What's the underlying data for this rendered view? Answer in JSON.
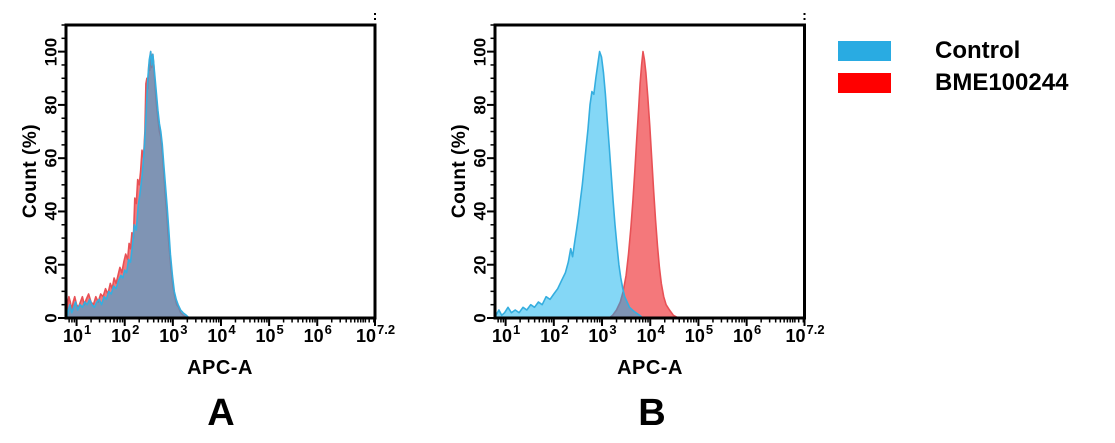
{
  "colors": {
    "control_fill": "rgba(10,176,238,0.5)",
    "control_stroke": "#35AEDF",
    "treatment_fill": "#F4787B",
    "treatment_stroke": "#E85156",
    "legend_control": "#29ABE2",
    "legend_treatment": "#FF0000",
    "axis": "#000000"
  },
  "legend": {
    "items": [
      {
        "label": "Control",
        "role": "control",
        "color": "#29ABE2"
      },
      {
        "label": "BME100244",
        "role": "treatment",
        "color": "#FF0000"
      }
    ]
  },
  "axes": {
    "x": {
      "label": "APC-A",
      "scale": "log10",
      "tick_base": "10",
      "range_log": [
        0.78,
        7.2
      ],
      "majors": [
        {
          "exp": "1",
          "log": 1
        },
        {
          "exp": "2",
          "log": 2
        },
        {
          "exp": "3",
          "log": 3
        },
        {
          "exp": "4",
          "log": 4
        },
        {
          "exp": "5",
          "log": 5
        },
        {
          "exp": "6",
          "log": 6
        },
        {
          "exp": "7.2",
          "log": 7.2
        }
      ],
      "minors_log": [
        0.845,
        0.903,
        0.954,
        1.301,
        1.477,
        1.602,
        1.699,
        1.778,
        1.845,
        1.903,
        1.954,
        2.301,
        2.477,
        2.602,
        2.699,
        2.778,
        2.845,
        2.903,
        2.954,
        3.301,
        3.477,
        3.602,
        3.699,
        3.778,
        3.845,
        3.903,
        3.954,
        4.301,
        4.477,
        4.602,
        4.699,
        4.778,
        4.845,
        4.903,
        4.954,
        5.301,
        5.477,
        5.602,
        5.699,
        5.778,
        5.845,
        5.903,
        5.954,
        6.301,
        6.477,
        6.602,
        6.699,
        6.778,
        6.845,
        6.903,
        6.954,
        7.0,
        7.079,
        7.176
      ]
    },
    "y": {
      "label": "Count (%)",
      "range": [
        0,
        110
      ],
      "majors": [
        0,
        20,
        40,
        60,
        80,
        100
      ],
      "minors": [
        5,
        10,
        15,
        25,
        30,
        35,
        45,
        50,
        55,
        65,
        70,
        75,
        85,
        90,
        95,
        105,
        110
      ],
      "grid": false
    }
  },
  "chart_data": [
    {
      "panel_label": "A",
      "type": "area",
      "xlabel": "APC-A",
      "ylabel": "Count (%)",
      "xscale": "log10",
      "xlim_log": [
        0.78,
        7.2
      ],
      "ylim": [
        0,
        110
      ],
      "legend_position": "outside-right",
      "series": [
        {
          "name": "BME100244",
          "role": "treatment",
          "points": [
            [
              0.8,
              0
            ],
            [
              0.81,
              5
            ],
            [
              0.84,
              8
            ],
            [
              0.87,
              6
            ],
            [
              0.9,
              3
            ],
            [
              0.93,
              6
            ],
            [
              0.96,
              8
            ],
            [
              1.0,
              5
            ],
            [
              1.04,
              4
            ],
            [
              1.08,
              6
            ],
            [
              1.12,
              8
            ],
            [
              1.16,
              5
            ],
            [
              1.2,
              7
            ],
            [
              1.25,
              9
            ],
            [
              1.3,
              6
            ],
            [
              1.35,
              5
            ],
            [
              1.4,
              8
            ],
            [
              1.45,
              6
            ],
            [
              1.5,
              9
            ],
            [
              1.55,
              8
            ],
            [
              1.6,
              11
            ],
            [
              1.65,
              9
            ],
            [
              1.7,
              13
            ],
            [
              1.74,
              11
            ],
            [
              1.78,
              15
            ],
            [
              1.82,
              13
            ],
            [
              1.86,
              16
            ],
            [
              1.9,
              19
            ],
            [
              1.94,
              17
            ],
            [
              1.98,
              21
            ],
            [
              2.02,
              24
            ],
            [
              2.06,
              22
            ],
            [
              2.09,
              28
            ],
            [
              2.12,
              26
            ],
            [
              2.15,
              32
            ],
            [
              2.18,
              30
            ],
            [
              2.21,
              45
            ],
            [
              2.24,
              43
            ],
            [
              2.27,
              52
            ],
            [
              2.3,
              50
            ],
            [
              2.33,
              55
            ],
            [
              2.36,
              63
            ],
            [
              2.39,
              60
            ],
            [
              2.42,
              70
            ],
            [
              2.44,
              88
            ],
            [
              2.46,
              90
            ],
            [
              2.48,
              86
            ],
            [
              2.5,
              95
            ],
            [
              2.52,
              93
            ],
            [
              2.54,
              100
            ],
            [
              2.56,
              94
            ],
            [
              2.58,
              99
            ],
            [
              2.6,
              96
            ],
            [
              2.62,
              90
            ],
            [
              2.64,
              85
            ],
            [
              2.66,
              80
            ],
            [
              2.69,
              75
            ],
            [
              2.72,
              70
            ],
            [
              2.75,
              68
            ],
            [
              2.78,
              62
            ],
            [
              2.81,
              55
            ],
            [
              2.84,
              47
            ],
            [
              2.87,
              40
            ],
            [
              2.9,
              32
            ],
            [
              2.93,
              25
            ],
            [
              2.96,
              19
            ],
            [
              3.0,
              12
            ],
            [
              3.04,
              8
            ],
            [
              3.08,
              5
            ],
            [
              3.12,
              4
            ],
            [
              3.16,
              2
            ],
            [
              3.22,
              1
            ],
            [
              3.3,
              0
            ]
          ]
        },
        {
          "name": "Control",
          "role": "control",
          "points": [
            [
              0.8,
              0
            ],
            [
              0.83,
              3
            ],
            [
              0.86,
              5
            ],
            [
              0.9,
              2
            ],
            [
              0.94,
              4
            ],
            [
              0.98,
              6
            ],
            [
              1.02,
              3
            ],
            [
              1.07,
              5
            ],
            [
              1.12,
              4
            ],
            [
              1.17,
              6
            ],
            [
              1.22,
              5
            ],
            [
              1.27,
              7
            ],
            [
              1.32,
              5
            ],
            [
              1.37,
              4
            ],
            [
              1.42,
              6
            ],
            [
              1.47,
              7
            ],
            [
              1.52,
              5
            ],
            [
              1.57,
              8
            ],
            [
              1.62,
              7
            ],
            [
              1.67,
              10
            ],
            [
              1.72,
              9
            ],
            [
              1.77,
              12
            ],
            [
              1.82,
              11
            ],
            [
              1.87,
              14
            ],
            [
              1.92,
              16
            ],
            [
              1.96,
              15
            ],
            [
              2.0,
              18
            ],
            [
              2.04,
              17
            ],
            [
              2.08,
              22
            ],
            [
              2.12,
              21
            ],
            [
              2.16,
              27
            ],
            [
              2.2,
              35
            ],
            [
              2.24,
              33
            ],
            [
              2.28,
              42
            ],
            [
              2.32,
              47
            ],
            [
              2.36,
              53
            ],
            [
              2.4,
              62
            ],
            [
              2.44,
              75
            ],
            [
              2.48,
              90
            ],
            [
              2.51,
              97
            ],
            [
              2.54,
              100
            ],
            [
              2.56,
              95
            ],
            [
              2.585,
              99
            ],
            [
              2.61,
              94
            ],
            [
              2.635,
              89
            ],
            [
              2.66,
              84
            ],
            [
              2.69,
              78
            ],
            [
              2.72,
              73
            ],
            [
              2.75,
              70
            ],
            [
              2.78,
              65
            ],
            [
              2.81,
              58
            ],
            [
              2.845,
              50
            ],
            [
              2.88,
              42
            ],
            [
              2.915,
              33
            ],
            [
              2.95,
              24
            ],
            [
              2.99,
              16
            ],
            [
              3.03,
              10
            ],
            [
              3.07,
              7
            ],
            [
              3.11,
              5
            ],
            [
              3.16,
              3
            ],
            [
              3.21,
              2
            ],
            [
              3.28,
              1
            ],
            [
              3.34,
              0
            ]
          ]
        }
      ]
    },
    {
      "panel_label": "B",
      "type": "area",
      "xlabel": "APC-A",
      "ylabel": "Count (%)",
      "xscale": "log10",
      "xlim_log": [
        0.78,
        7.2
      ],
      "ylim": [
        0,
        110
      ],
      "legend_position": "outside-right",
      "series": [
        {
          "name": "BME100244",
          "role": "treatment",
          "points": [
            [
              3.15,
              0
            ],
            [
              3.22,
              1
            ],
            [
              3.3,
              3
            ],
            [
              3.38,
              6
            ],
            [
              3.44,
              10
            ],
            [
              3.5,
              16
            ],
            [
              3.55,
              24
            ],
            [
              3.6,
              34
            ],
            [
              3.64,
              44
            ],
            [
              3.68,
              55
            ],
            [
              3.72,
              67
            ],
            [
              3.76,
              79
            ],
            [
              3.79,
              88
            ],
            [
              3.82,
              95
            ],
            [
              3.85,
              100
            ],
            [
              3.88,
              97
            ],
            [
              3.91,
              92
            ],
            [
              3.95,
              83
            ],
            [
              3.99,
              72
            ],
            [
              4.03,
              60
            ],
            [
              4.07,
              48
            ],
            [
              4.11,
              37
            ],
            [
              4.15,
              27
            ],
            [
              4.19,
              19
            ],
            [
              4.23,
              13
            ],
            [
              4.28,
              8
            ],
            [
              4.33,
              5
            ],
            [
              4.4,
              3
            ],
            [
              4.48,
              1
            ],
            [
              4.58,
              0
            ]
          ]
        },
        {
          "name": "Control",
          "role": "control",
          "points": [
            [
              0.8,
              1
            ],
            [
              0.86,
              3
            ],
            [
              0.92,
              1
            ],
            [
              0.98,
              2
            ],
            [
              1.05,
              4
            ],
            [
              1.12,
              2
            ],
            [
              1.2,
              3
            ],
            [
              1.28,
              2
            ],
            [
              1.36,
              4
            ],
            [
              1.44,
              3
            ],
            [
              1.52,
              5
            ],
            [
              1.6,
              4
            ],
            [
              1.68,
              6
            ],
            [
              1.76,
              5
            ],
            [
              1.84,
              8
            ],
            [
              1.92,
              7
            ],
            [
              2.0,
              9
            ],
            [
              2.08,
              11
            ],
            [
              2.16,
              14
            ],
            [
              2.24,
              17
            ],
            [
              2.3,
              21
            ],
            [
              2.35,
              26
            ],
            [
              2.39,
              23
            ],
            [
              2.43,
              28
            ],
            [
              2.47,
              33
            ],
            [
              2.51,
              38
            ],
            [
              2.55,
              44
            ],
            [
              2.59,
              50
            ],
            [
              2.63,
              57
            ],
            [
              2.67,
              64
            ],
            [
              2.71,
              71
            ],
            [
              2.75,
              80
            ],
            [
              2.79,
              85
            ],
            [
              2.83,
              84
            ],
            [
              2.87,
              90
            ],
            [
              2.91,
              95
            ],
            [
              2.95,
              100
            ],
            [
              2.99,
              98
            ],
            [
              3.03,
              92
            ],
            [
              3.07,
              84
            ],
            [
              3.11,
              74
            ],
            [
              3.15,
              64
            ],
            [
              3.19,
              54
            ],
            [
              3.23,
              44
            ],
            [
              3.27,
              35
            ],
            [
              3.31,
              27
            ],
            [
              3.35,
              20
            ],
            [
              3.39,
              15
            ],
            [
              3.43,
              11
            ],
            [
              3.47,
              8
            ],
            [
              3.52,
              6
            ],
            [
              3.57,
              4
            ],
            [
              3.63,
              3
            ],
            [
              3.7,
              2
            ],
            [
              3.78,
              1
            ],
            [
              3.85,
              0
            ]
          ]
        }
      ]
    }
  ]
}
